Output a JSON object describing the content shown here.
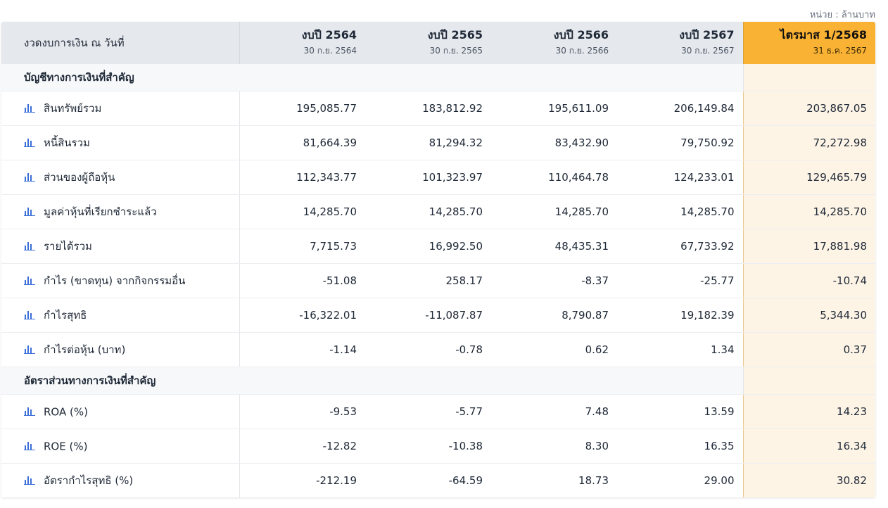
{
  "unit_label": "หน่วย : ล้านบาท",
  "header": {
    "period_label": "งวดงบการเงิน ณ วันที่",
    "columns": [
      {
        "title": "งบปี 2564",
        "date": "30 ก.ย. 2564"
      },
      {
        "title": "งบปี 2565",
        "date": "30 ก.ย. 2565"
      },
      {
        "title": "งบปี 2566",
        "date": "30 ก.ย. 2566"
      },
      {
        "title": "งบปี 2567",
        "date": "30 ก.ย. 2567"
      },
      {
        "title": "ไตรมาส 1/2568",
        "date": "31 ธ.ค. 2567"
      }
    ]
  },
  "highlight_color": "#f9b233",
  "icon": "bar-chart-icon",
  "sections": [
    {
      "title": "บัญชีทางการเงินที่สำคัญ",
      "rows": [
        {
          "label": "สินทรัพย์รวม",
          "values": [
            "195,085.77",
            "183,812.92",
            "195,611.09",
            "206,149.84",
            "203,867.05"
          ]
        },
        {
          "label": "หนี้สินรวม",
          "values": [
            "81,664.39",
            "81,294.32",
            "83,432.90",
            "79,750.92",
            "72,272.98"
          ]
        },
        {
          "label": "ส่วนของผู้ถือหุ้น",
          "values": [
            "112,343.77",
            "101,323.97",
            "110,464.78",
            "124,233.01",
            "129,465.79"
          ]
        },
        {
          "label": "มูลค่าหุ้นที่เรียกชำระแล้ว",
          "values": [
            "14,285.70",
            "14,285.70",
            "14,285.70",
            "14,285.70",
            "14,285.70"
          ]
        },
        {
          "label": "รายได้รวม",
          "values": [
            "7,715.73",
            "16,992.50",
            "48,435.31",
            "67,733.92",
            "17,881.98"
          ]
        },
        {
          "label": "กำไร (ขาดทุน) จากกิจกรรมอื่น",
          "values": [
            "-51.08",
            "258.17",
            "-8.37",
            "-25.77",
            "-10.74"
          ]
        },
        {
          "label": "กำไรสุทธิ",
          "values": [
            "-16,322.01",
            "-11,087.87",
            "8,790.87",
            "19,182.39",
            "5,344.30"
          ]
        },
        {
          "label": "กำไรต่อหุ้น (บาท)",
          "values": [
            "-1.14",
            "-0.78",
            "0.62",
            "1.34",
            "0.37"
          ]
        }
      ]
    },
    {
      "title": "อัตราส่วนทางการเงินที่สำคัญ",
      "rows": [
        {
          "label": "ROA (%)",
          "values": [
            "-9.53",
            "-5.77",
            "7.48",
            "13.59",
            "14.23"
          ]
        },
        {
          "label": "ROE (%)",
          "values": [
            "-12.82",
            "-10.38",
            "8.30",
            "16.35",
            "16.34"
          ]
        },
        {
          "label": "อัตรากำไรสุทธิ (%)",
          "values": [
            "-212.19",
            "-64.59",
            "18.73",
            "29.00",
            "30.82"
          ]
        }
      ]
    }
  ]
}
